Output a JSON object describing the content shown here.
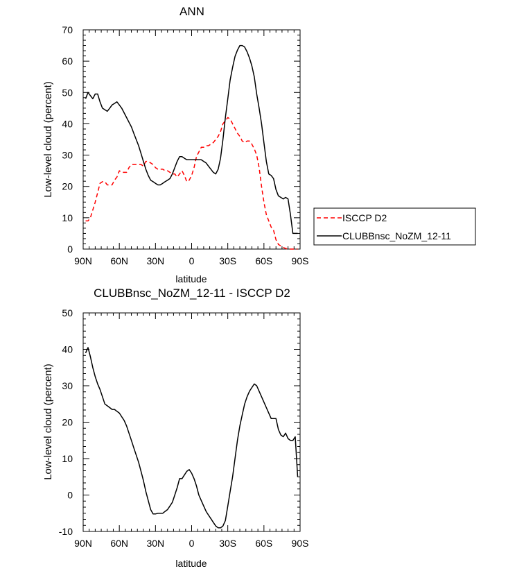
{
  "chart_data": [
    {
      "type": "line",
      "title": "ANN",
      "xlabel": "latitude",
      "ylabel": "Low-level cloud (percent)",
      "xlim": [
        90,
        -90
      ],
      "ylim": [
        0,
        70
      ],
      "x_ticks": [
        {
          "value": 90,
          "label": "90N"
        },
        {
          "value": 60,
          "label": "60N"
        },
        {
          "value": 30,
          "label": "30N"
        },
        {
          "value": 0,
          "label": "0"
        },
        {
          "value": -30,
          "label": "30S"
        },
        {
          "value": -60,
          "label": "60S"
        },
        {
          "value": -90,
          "label": "90S"
        }
      ],
      "y_ticks": [
        0,
        10,
        20,
        30,
        40,
        50,
        60,
        70
      ],
      "grid": false,
      "legend_placement": "right, outside",
      "series": [
        {
          "name": "ISCCP D2",
          "color": "#ff0000",
          "dash": "dashed",
          "x": [
            88,
            86,
            84,
            82,
            80,
            78,
            76,
            74,
            72,
            70,
            68,
            66,
            64,
            62,
            60,
            58,
            56,
            54,
            52,
            50,
            48,
            46,
            44,
            42,
            40,
            38,
            36,
            34,
            32,
            30,
            28,
            26,
            24,
            22,
            20,
            18,
            16,
            14,
            12,
            10,
            8,
            6,
            4,
            2,
            0,
            -2,
            -4,
            -6,
            -8,
            -10,
            -12,
            -14,
            -16,
            -18,
            -20,
            -22,
            -24,
            -26,
            -28,
            -30,
            -32,
            -34,
            -36,
            -38,
            -40,
            -42,
            -44,
            -46,
            -48,
            -50,
            -52,
            -54,
            -56,
            -58,
            -60,
            -62,
            -64,
            -66,
            -68,
            -70,
            -72,
            -74,
            -76,
            -78,
            -80,
            -82,
            -84,
            -86,
            -88
          ],
          "values": [
            9,
            9,
            10,
            12.5,
            15,
            18,
            21,
            21.5,
            21.5,
            20.5,
            20.5,
            20.5,
            22,
            23,
            25,
            24.5,
            24.5,
            24.5,
            26,
            27,
            27,
            27,
            27,
            27,
            26.5,
            28,
            28,
            27.5,
            27,
            26,
            25.5,
            25.5,
            25.5,
            25,
            25,
            24.5,
            24,
            24,
            23,
            24,
            25,
            23.5,
            21.5,
            22,
            23.5,
            26,
            29.5,
            31,
            32.5,
            32.5,
            33,
            33,
            33.5,
            34,
            35,
            36,
            37.5,
            40,
            41,
            42,
            41.5,
            40,
            38.5,
            37,
            36,
            34.5,
            34,
            34.5,
            34.5,
            33.5,
            32,
            30,
            26,
            20,
            15,
            11,
            9,
            7,
            6,
            3,
            1.5,
            1,
            0.5,
            0.2,
            0,
            0,
            0,
            0,
            0
          ]
        },
        {
          "name": "CLUBBnsc_NoZM_12-11",
          "color": "#000000",
          "dash": "solid",
          "x": [
            88,
            86,
            84,
            82,
            80,
            78,
            76,
            74,
            72,
            70,
            68,
            66,
            64,
            62,
            60,
            58,
            56,
            54,
            52,
            50,
            48,
            46,
            44,
            42,
            40,
            38,
            36,
            34,
            32,
            30,
            28,
            26,
            24,
            22,
            20,
            18,
            16,
            14,
            12,
            10,
            8,
            6,
            4,
            2,
            0,
            -2,
            -4,
            -6,
            -8,
            -10,
            -12,
            -14,
            -16,
            -18,
            -20,
            -22,
            -24,
            -26,
            -28,
            -30,
            -32,
            -34,
            -36,
            -38,
            -40,
            -42,
            -44,
            -46,
            -48,
            -50,
            -52,
            -54,
            -56,
            -58,
            -60,
            -62,
            -64,
            -66,
            -68,
            -70,
            -72,
            -74,
            -76,
            -78,
            -80,
            -82,
            -84,
            -86,
            -88
          ],
          "values": [
            48,
            50,
            49,
            48,
            49.5,
            49.5,
            47,
            45,
            44.5,
            44,
            45,
            46,
            46.5,
            47,
            46,
            45,
            43.5,
            42,
            40.5,
            39,
            37,
            35,
            33,
            30.5,
            28,
            25.5,
            23.5,
            22,
            21.5,
            21,
            20.5,
            20.5,
            21,
            21.5,
            22,
            22.5,
            24,
            26,
            28,
            29.5,
            29.5,
            29,
            28.5,
            28.5,
            28.5,
            28.5,
            28.5,
            28.5,
            28.5,
            28,
            27.5,
            26.5,
            25.5,
            24.5,
            24,
            25.5,
            29,
            35,
            42,
            48,
            54,
            58,
            61.5,
            63.5,
            65,
            65,
            64.5,
            63,
            61,
            58.5,
            55,
            49.5,
            45,
            40,
            34,
            28,
            24,
            23.5,
            22.5,
            19,
            17,
            16.5,
            16,
            16.5,
            16,
            11,
            5,
            5,
            5
          ]
        }
      ]
    },
    {
      "type": "line",
      "title": "CLUBBnsc_NoZM_12-11 - ISCCP D2",
      "xlabel": "latitude",
      "ylabel": "Low-level cloud (percent)",
      "xlim": [
        90,
        -90
      ],
      "ylim": [
        -10,
        50
      ],
      "x_ticks": [
        {
          "value": 90,
          "label": "90N"
        },
        {
          "value": 60,
          "label": "60N"
        },
        {
          "value": 30,
          "label": "30N"
        },
        {
          "value": 0,
          "label": "0"
        },
        {
          "value": -30,
          "label": "30S"
        },
        {
          "value": -60,
          "label": "60S"
        },
        {
          "value": -90,
          "label": "90S"
        }
      ],
      "y_ticks": [
        -10,
        0,
        10,
        20,
        30,
        40,
        50
      ],
      "grid": false,
      "series": [
        {
          "color": "#000000",
          "dash": "solid",
          "x": [
            88,
            86,
            84,
            82,
            80,
            78,
            76,
            74,
            72,
            70,
            68,
            66,
            64,
            62,
            60,
            58,
            56,
            54,
            52,
            50,
            48,
            46,
            44,
            42,
            40,
            38,
            36,
            34,
            32,
            30,
            28,
            26,
            24,
            22,
            20,
            18,
            16,
            14,
            12,
            10,
            8,
            6,
            4,
            2,
            0,
            -2,
            -4,
            -6,
            -8,
            -10,
            -12,
            -14,
            -16,
            -18,
            -20,
            -22,
            -24,
            -26,
            -28,
            -30,
            -32,
            -34,
            -36,
            -38,
            -40,
            -42,
            -44,
            -46,
            -48,
            -50,
            -52,
            -54,
            -56,
            -58,
            -60,
            -62,
            -64,
            -66,
            -68,
            -70,
            -72,
            -74,
            -76,
            -78,
            -80,
            -82,
            -84,
            -86,
            -88
          ],
          "values": [
            39,
            40.5,
            38,
            35,
            32.5,
            30.5,
            29,
            27,
            25,
            24.5,
            24,
            23.5,
            23.5,
            23,
            22.5,
            21.5,
            20.5,
            19,
            17,
            15,
            13,
            11,
            9,
            6.5,
            4,
            1,
            -1.5,
            -4,
            -5.2,
            -5.2,
            -5,
            -5,
            -5,
            -4.5,
            -4,
            -3,
            -2,
            0,
            2,
            4.5,
            4.5,
            5.5,
            6.5,
            7,
            6,
            4.5,
            2.5,
            0,
            -1.5,
            -3,
            -4.5,
            -5.5,
            -6.5,
            -7.5,
            -8.5,
            -9,
            -9,
            -8.5,
            -7,
            -3,
            1,
            5,
            10,
            15,
            19,
            22,
            25,
            27,
            28.5,
            29.5,
            30.5,
            30,
            28.5,
            27,
            25.5,
            24,
            22.5,
            21,
            21,
            21,
            18,
            16.5,
            16,
            17,
            15.5,
            15,
            15,
            16,
            5
          ]
        }
      ]
    }
  ]
}
